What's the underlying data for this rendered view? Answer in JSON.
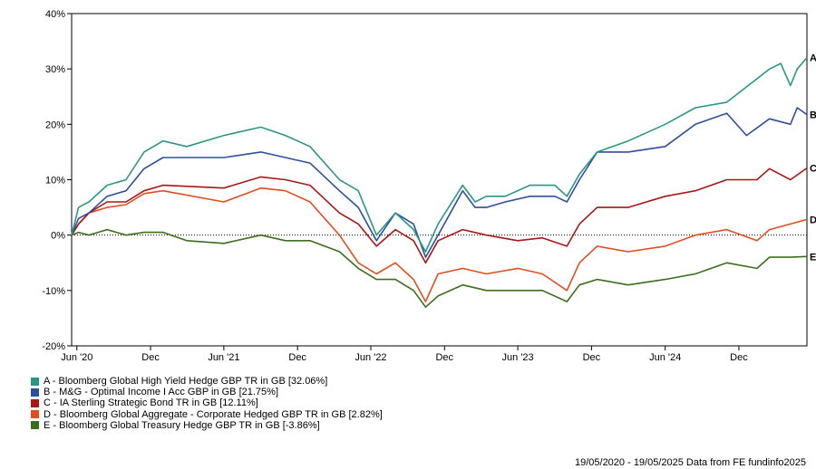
{
  "chart_data": {
    "type": "line",
    "x_tick_labels": [
      "Jun '20",
      "Dec",
      "Jun '21",
      "Dec",
      "Jun '22",
      "Dec",
      "Jun '23",
      "Dec",
      "Jun '24",
      "Dec"
    ],
    "x_tick_dates": [
      "2020-06-01",
      "2020-12-01",
      "2021-06-01",
      "2021-12-01",
      "2022-06-01",
      "2022-12-01",
      "2023-06-01",
      "2023-12-01",
      "2024-06-01",
      "2024-12-01"
    ],
    "x_range": [
      "2020-05-19",
      "2025-05-19"
    ],
    "ylim": [
      -20,
      40
    ],
    "y_ticks": [
      -20,
      -10,
      0,
      10,
      20,
      30,
      40
    ],
    "y_tick_labels": [
      "-20%",
      "-10%",
      "0%",
      "10%",
      "20%",
      "30%",
      "40%"
    ],
    "zero_line": "dotted",
    "grid": false,
    "series": [
      {
        "id": "A",
        "color": "#2a9785",
        "legend": "A - Bloomberg Global High Yield Hedge GBP TR in GB [32.06%]",
        "points": [
          [
            "2020-05-19",
            0
          ],
          [
            "2020-06-05",
            5
          ],
          [
            "2020-07-01",
            6
          ],
          [
            "2020-08-15",
            9
          ],
          [
            "2020-10-01",
            10
          ],
          [
            "2020-11-15",
            15
          ],
          [
            "2021-01-01",
            17
          ],
          [
            "2021-03-01",
            16
          ],
          [
            "2021-06-01",
            18
          ],
          [
            "2021-09-01",
            19.5
          ],
          [
            "2021-11-01",
            18
          ],
          [
            "2022-01-01",
            16
          ],
          [
            "2022-03-15",
            10
          ],
          [
            "2022-05-01",
            8
          ],
          [
            "2022-06-15",
            0
          ],
          [
            "2022-08-01",
            4
          ],
          [
            "2022-09-15",
            1
          ],
          [
            "2022-10-15",
            -3
          ],
          [
            "2022-11-15",
            2
          ],
          [
            "2023-01-15",
            9
          ],
          [
            "2023-02-15",
            6
          ],
          [
            "2023-03-15",
            7
          ],
          [
            "2023-05-01",
            7
          ],
          [
            "2023-07-01",
            9
          ],
          [
            "2023-09-01",
            9
          ],
          [
            "2023-10-01",
            7
          ],
          [
            "2023-11-01",
            11
          ],
          [
            "2023-12-15",
            15
          ],
          [
            "2024-03-01",
            17
          ],
          [
            "2024-06-01",
            20
          ],
          [
            "2024-08-15",
            23
          ],
          [
            "2024-11-01",
            24
          ],
          [
            "2025-02-15",
            30
          ],
          [
            "2025-03-15",
            31
          ],
          [
            "2025-04-08",
            27
          ],
          [
            "2025-04-25",
            30
          ],
          [
            "2025-05-19",
            32.06
          ]
        ]
      },
      {
        "id": "B",
        "color": "#2e4f9e",
        "legend": "B - M&G - Optimal Income I Acc GBP in GB [21.75%]",
        "points": [
          [
            "2020-05-19",
            0
          ],
          [
            "2020-06-05",
            3
          ],
          [
            "2020-07-01",
            4
          ],
          [
            "2020-08-15",
            7
          ],
          [
            "2020-10-01",
            8
          ],
          [
            "2020-11-15",
            12
          ],
          [
            "2021-01-01",
            14
          ],
          [
            "2021-06-01",
            14
          ],
          [
            "2021-09-01",
            15
          ],
          [
            "2021-11-01",
            14
          ],
          [
            "2022-01-01",
            13
          ],
          [
            "2022-03-15",
            8
          ],
          [
            "2022-05-01",
            5
          ],
          [
            "2022-06-15",
            -1
          ],
          [
            "2022-08-01",
            4
          ],
          [
            "2022-09-15",
            2
          ],
          [
            "2022-10-15",
            -4
          ],
          [
            "2022-11-15",
            0
          ],
          [
            "2023-01-15",
            8
          ],
          [
            "2023-02-15",
            5
          ],
          [
            "2023-03-15",
            5
          ],
          [
            "2023-05-01",
            6
          ],
          [
            "2023-07-01",
            7
          ],
          [
            "2023-09-01",
            7
          ],
          [
            "2023-10-01",
            6
          ],
          [
            "2023-11-01",
            10
          ],
          [
            "2023-12-15",
            15
          ],
          [
            "2024-03-01",
            15
          ],
          [
            "2024-06-01",
            16
          ],
          [
            "2024-08-15",
            20
          ],
          [
            "2024-11-01",
            22
          ],
          [
            "2024-12-20",
            18
          ],
          [
            "2025-02-15",
            21
          ],
          [
            "2025-04-08",
            20
          ],
          [
            "2025-04-25",
            23
          ],
          [
            "2025-05-19",
            21.75
          ]
        ]
      },
      {
        "id": "C",
        "color": "#a91616",
        "legend": "C - IA Sterling Strategic Bond TR in GB [12.11%]",
        "points": [
          [
            "2020-05-19",
            0
          ],
          [
            "2020-06-05",
            2
          ],
          [
            "2020-07-01",
            4
          ],
          [
            "2020-08-15",
            6
          ],
          [
            "2020-10-01",
            6
          ],
          [
            "2020-11-15",
            8
          ],
          [
            "2021-01-01",
            9
          ],
          [
            "2021-06-01",
            8.5
          ],
          [
            "2021-09-01",
            10.5
          ],
          [
            "2021-11-01",
            10
          ],
          [
            "2022-01-01",
            9
          ],
          [
            "2022-03-15",
            4
          ],
          [
            "2022-05-01",
            2
          ],
          [
            "2022-06-15",
            -2
          ],
          [
            "2022-08-01",
            1
          ],
          [
            "2022-09-15",
            -1
          ],
          [
            "2022-10-15",
            -5
          ],
          [
            "2022-11-15",
            -1
          ],
          [
            "2023-01-15",
            1
          ],
          [
            "2023-03-15",
            0
          ],
          [
            "2023-06-01",
            -1
          ],
          [
            "2023-08-01",
            -0.5
          ],
          [
            "2023-10-01",
            -2
          ],
          [
            "2023-11-01",
            2
          ],
          [
            "2023-12-15",
            5
          ],
          [
            "2024-03-01",
            5
          ],
          [
            "2024-06-01",
            7
          ],
          [
            "2024-08-15",
            8
          ],
          [
            "2024-11-01",
            10
          ],
          [
            "2025-01-15",
            10
          ],
          [
            "2025-02-15",
            12
          ],
          [
            "2025-04-08",
            10
          ],
          [
            "2025-05-19",
            12.11
          ]
        ]
      },
      {
        "id": "D",
        "color": "#e04e1f",
        "legend": "D - Bloomberg Global Aggregate - Corporate Hedged GBP TR in GB [2.82%]",
        "points": [
          [
            "2020-05-19",
            0
          ],
          [
            "2020-06-05",
            2
          ],
          [
            "2020-07-01",
            4
          ],
          [
            "2020-08-15",
            5
          ],
          [
            "2020-10-01",
            5.5
          ],
          [
            "2020-11-15",
            7.5
          ],
          [
            "2021-01-01",
            8
          ],
          [
            "2021-06-01",
            6
          ],
          [
            "2021-09-01",
            8.5
          ],
          [
            "2021-11-01",
            8
          ],
          [
            "2022-01-01",
            6
          ],
          [
            "2022-03-15",
            0
          ],
          [
            "2022-05-01",
            -5
          ],
          [
            "2022-06-15",
            -7
          ],
          [
            "2022-08-01",
            -5
          ],
          [
            "2022-09-15",
            -8
          ],
          [
            "2022-10-15",
            -12
          ],
          [
            "2022-11-15",
            -7
          ],
          [
            "2023-01-15",
            -6
          ],
          [
            "2023-03-15",
            -7
          ],
          [
            "2023-06-01",
            -6
          ],
          [
            "2023-08-01",
            -7
          ],
          [
            "2023-10-01",
            -10
          ],
          [
            "2023-11-01",
            -5
          ],
          [
            "2023-12-15",
            -2
          ],
          [
            "2024-03-01",
            -3
          ],
          [
            "2024-06-01",
            -2
          ],
          [
            "2024-08-15",
            0
          ],
          [
            "2024-11-01",
            1
          ],
          [
            "2025-01-15",
            -1
          ],
          [
            "2025-02-15",
            1
          ],
          [
            "2025-04-08",
            2
          ],
          [
            "2025-05-19",
            2.82
          ]
        ]
      },
      {
        "id": "E",
        "color": "#3c6e1b",
        "legend": "E - Bloomberg Global Treasury Hedge GBP TR in GB [-3.86%]",
        "points": [
          [
            "2020-05-19",
            0
          ],
          [
            "2020-06-05",
            0.5
          ],
          [
            "2020-07-01",
            0
          ],
          [
            "2020-08-15",
            1
          ],
          [
            "2020-10-01",
            0
          ],
          [
            "2020-11-15",
            0.5
          ],
          [
            "2021-01-01",
            0.5
          ],
          [
            "2021-03-01",
            -1
          ],
          [
            "2021-06-01",
            -1.5
          ],
          [
            "2021-09-01",
            0
          ],
          [
            "2021-11-01",
            -1
          ],
          [
            "2022-01-01",
            -1
          ],
          [
            "2022-03-15",
            -3
          ],
          [
            "2022-05-01",
            -6
          ],
          [
            "2022-06-15",
            -8
          ],
          [
            "2022-08-01",
            -8
          ],
          [
            "2022-09-15",
            -10
          ],
          [
            "2022-10-15",
            -13
          ],
          [
            "2022-11-15",
            -11
          ],
          [
            "2023-01-15",
            -9
          ],
          [
            "2023-03-15",
            -10
          ],
          [
            "2023-06-01",
            -10
          ],
          [
            "2023-08-01",
            -10
          ],
          [
            "2023-10-01",
            -12
          ],
          [
            "2023-11-01",
            -9
          ],
          [
            "2023-12-15",
            -8
          ],
          [
            "2024-03-01",
            -9
          ],
          [
            "2024-06-01",
            -8
          ],
          [
            "2024-08-15",
            -7
          ],
          [
            "2024-11-01",
            -5
          ],
          [
            "2025-01-15",
            -6
          ],
          [
            "2025-02-15",
            -4
          ],
          [
            "2025-04-08",
            -4
          ],
          [
            "2025-05-19",
            -3.86
          ]
        ]
      }
    ]
  },
  "footer": "19/05/2020 - 19/05/2025 Data from FE fundinfo2025"
}
